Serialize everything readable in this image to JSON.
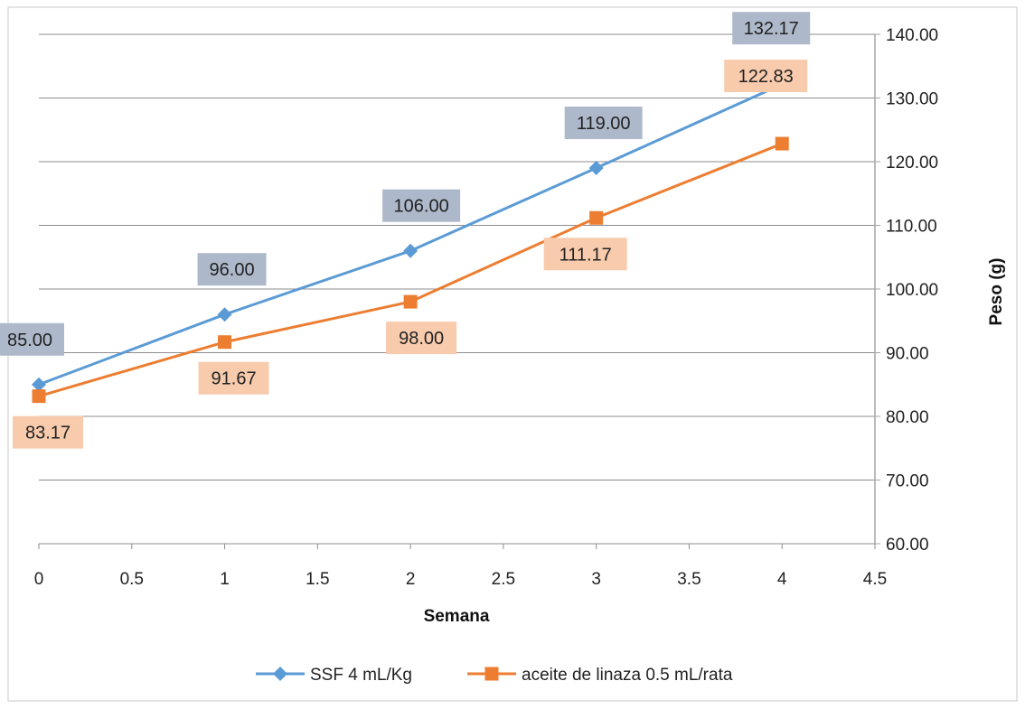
{
  "colors": {
    "series1": "#5b9bd5",
    "series2": "#ed7d31",
    "label_bg1": "#adb9ca",
    "label_bg2": "#f8cbad",
    "grid": "#8c8c8c",
    "frame": "#a6a6a6"
  },
  "chart_data": {
    "type": "line",
    "xlabel": "Semana",
    "ylabel": "Peso (g)",
    "xlim": [
      0,
      4.5
    ],
    "ylim": [
      60,
      140
    ],
    "x_ticks": [
      "0",
      "0.5",
      "1",
      "1.5",
      "2",
      "2.5",
      "3",
      "3.5",
      "4",
      "4.5"
    ],
    "y_ticks": [
      "60.00",
      "70.00",
      "80.00",
      "90.00",
      "100.00",
      "110.00",
      "120.00",
      "130.00",
      "140.00"
    ],
    "y_axis_position": "right",
    "grid": true,
    "legend_position": "bottom",
    "series": [
      {
        "name": "SSF 4 mL/Kg",
        "marker": "diamond",
        "x": [
          0,
          1,
          2,
          3,
          4
        ],
        "y": [
          85.0,
          96.0,
          106.0,
          119.0,
          132.17
        ],
        "labels": [
          "85.00",
          "96.00",
          "106.00",
          "119.00",
          "132.17"
        ]
      },
      {
        "name": "aceite de linaza 0.5 mL/rata",
        "marker": "square",
        "x": [
          0,
          1,
          2,
          3,
          4
        ],
        "y": [
          83.17,
          91.67,
          98.0,
          111.17,
          122.83
        ],
        "labels": [
          "83.17",
          "91.67",
          "98.00",
          "111.17",
          "122.83"
        ]
      }
    ]
  }
}
